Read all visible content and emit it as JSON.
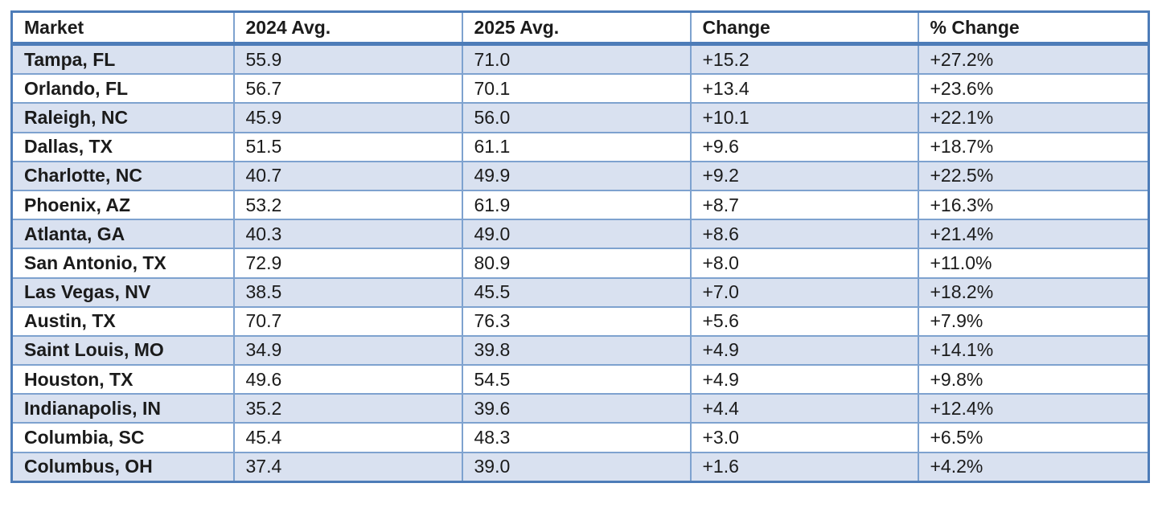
{
  "table": {
    "columns": [
      "Market",
      "2024 Avg.",
      "2025 Avg.",
      "Change",
      "% Change"
    ],
    "rows": [
      {
        "market": "Tampa, FL",
        "avg_2024": "55.9",
        "avg_2025": "71.0",
        "change": "+15.2",
        "pct_change": "+27.2%"
      },
      {
        "market": "Orlando, FL",
        "avg_2024": "56.7",
        "avg_2025": "70.1",
        "change": "+13.4",
        "pct_change": "+23.6%"
      },
      {
        "market": "Raleigh, NC",
        "avg_2024": "45.9",
        "avg_2025": "56.0",
        "change": "+10.1",
        "pct_change": "+22.1%"
      },
      {
        "market": "Dallas, TX",
        "avg_2024": "51.5",
        "avg_2025": "61.1",
        "change": "+9.6",
        "pct_change": "+18.7%"
      },
      {
        "market": "Charlotte, NC",
        "avg_2024": "40.7",
        "avg_2025": "49.9",
        "change": "+9.2",
        "pct_change": "+22.5%"
      },
      {
        "market": "Phoenix, AZ",
        "avg_2024": "53.2",
        "avg_2025": "61.9",
        "change": "+8.7",
        "pct_change": "+16.3%"
      },
      {
        "market": "Atlanta, GA",
        "avg_2024": "40.3",
        "avg_2025": "49.0",
        "change": "+8.6",
        "pct_change": "+21.4%"
      },
      {
        "market": "San Antonio, TX",
        "avg_2024": "72.9",
        "avg_2025": "80.9",
        "change": "+8.0",
        "pct_change": "+11.0%"
      },
      {
        "market": "Las Vegas, NV",
        "avg_2024": "38.5",
        "avg_2025": "45.5",
        "change": "+7.0",
        "pct_change": "+18.2%"
      },
      {
        "market": "Austin, TX",
        "avg_2024": "70.7",
        "avg_2025": "76.3",
        "change": "+5.6",
        "pct_change": "+7.9%"
      },
      {
        "market": "Saint Louis, MO",
        "avg_2024": "34.9",
        "avg_2025": "39.8",
        "change": "+4.9",
        "pct_change": "+14.1%"
      },
      {
        "market": "Houston, TX",
        "avg_2024": "49.6",
        "avg_2025": "54.5",
        "change": "+4.9",
        "pct_change": "+9.8%"
      },
      {
        "market": "Indianapolis, IN",
        "avg_2024": "35.2",
        "avg_2025": "39.6",
        "change": "+4.4",
        "pct_change": "+12.4%"
      },
      {
        "market": "Columbia, SC",
        "avg_2024": "45.4",
        "avg_2025": "48.3",
        "change": "+3.0",
        "pct_change": "+6.5%"
      },
      {
        "market": "Columbus, OH",
        "avg_2024": "37.4",
        "avg_2025": "39.0",
        "change": "+1.6",
        "pct_change": "+4.2%"
      }
    ]
  },
  "colors": {
    "banded_row_fill": "#d9e1f0",
    "inner_border": "#7ea2cf",
    "outer_border": "#4d7cb8",
    "text": "#1b1b1b",
    "header_fill": "#ffffff"
  },
  "chart_data": {
    "type": "table",
    "title": "",
    "columns": [
      "Market",
      "2024 Avg.",
      "2025 Avg.",
      "Change",
      "% Change"
    ],
    "rows": [
      [
        "Tampa, FL",
        55.9,
        71.0,
        15.2,
        27.2
      ],
      [
        "Orlando, FL",
        56.7,
        70.1,
        13.4,
        23.6
      ],
      [
        "Raleigh, NC",
        45.9,
        56.0,
        10.1,
        22.1
      ],
      [
        "Dallas, TX",
        51.5,
        61.1,
        9.6,
        18.7
      ],
      [
        "Charlotte, NC",
        40.7,
        49.9,
        9.2,
        22.5
      ],
      [
        "Phoenix, AZ",
        53.2,
        61.9,
        8.7,
        16.3
      ],
      [
        "Atlanta, GA",
        40.3,
        49.0,
        8.6,
        21.4
      ],
      [
        "San Antonio, TX",
        72.9,
        80.9,
        8.0,
        11.0
      ],
      [
        "Las Vegas, NV",
        38.5,
        45.5,
        7.0,
        18.2
      ],
      [
        "Austin, TX",
        70.7,
        76.3,
        5.6,
        7.9
      ],
      [
        "Saint Louis, MO",
        34.9,
        39.8,
        4.9,
        14.1
      ],
      [
        "Houston, TX",
        49.6,
        54.5,
        4.9,
        9.8
      ],
      [
        "Indianapolis, IN",
        35.2,
        39.6,
        4.4,
        12.4
      ],
      [
        "Columbia, SC",
        45.4,
        48.3,
        3.0,
        6.5
      ],
      [
        "Columbus, OH",
        37.4,
        39.0,
        1.6,
        4.2
      ]
    ],
    "notes": "Change and % Change columns are displayed with leading + signs; % Change shown with % suffix. Rows sorted by Change descending."
  }
}
